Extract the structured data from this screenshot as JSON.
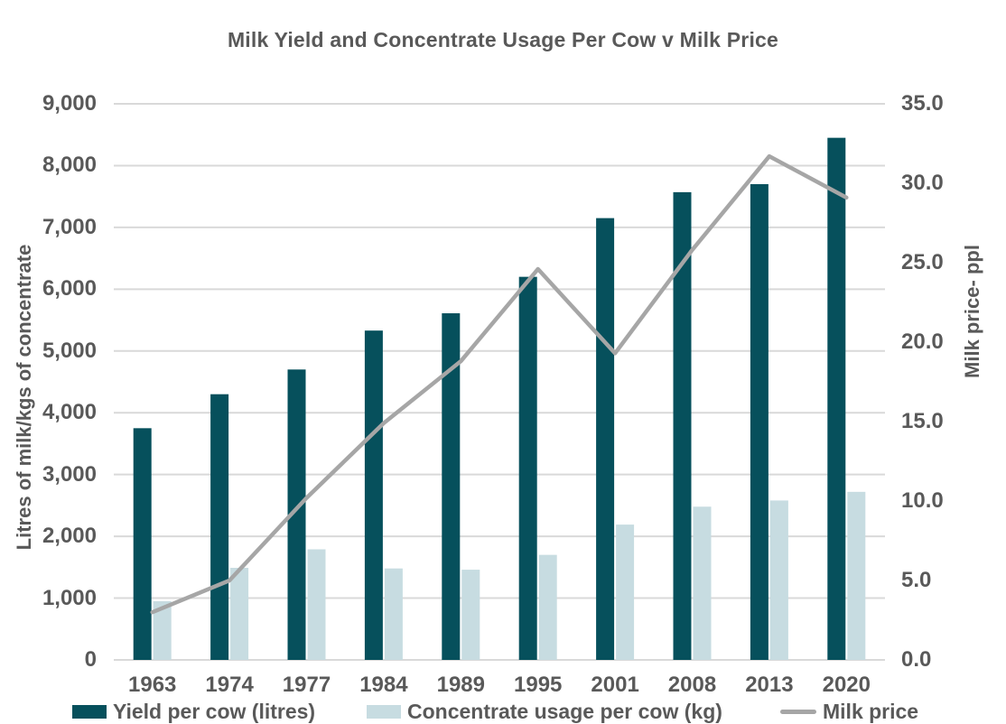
{
  "chart_data": {
    "type": "bar",
    "subtype": "clustered-bar-with-line-combo",
    "title": "Milk Yield and Concentrate Usage Per Cow v Milk Price",
    "categories": [
      "1963",
      "1974",
      "1977",
      "1984",
      "1989",
      "1995",
      "2001",
      "2008",
      "2013",
      "2020"
    ],
    "series": [
      {
        "name": "Yield per cow (litres)",
        "type": "bar",
        "axis": "left",
        "color": "#06505c",
        "values": [
          3750,
          4300,
          4700,
          5330,
          5610,
          6200,
          7150,
          7570,
          7700,
          8450
        ]
      },
      {
        "name": "Concentrate usage per cow (kg)",
        "type": "bar",
        "axis": "left",
        "color": "#c7dce1",
        "values": [
          950,
          1490,
          1790,
          1480,
          1460,
          1700,
          2190,
          2480,
          2580,
          2720
        ]
      },
      {
        "name": "Milk price",
        "type": "line",
        "axis": "right",
        "color": "#a6a6a6",
        "values": [
          3.0,
          5.0,
          10.2,
          14.9,
          18.8,
          24.6,
          19.3,
          25.8,
          31.7,
          29.1
        ]
      }
    ],
    "left_axis": {
      "title": "Litres of milk/kgs of concentrate",
      "min": 0,
      "max": 9000,
      "step": 1000,
      "tick_labels": [
        "0",
        "1,000",
        "2,000",
        "3,000",
        "4,000",
        "5,000",
        "6,000",
        "7,000",
        "8,000",
        "9,000"
      ]
    },
    "right_axis": {
      "title": "Milk price- ppl",
      "min": 0,
      "max": 35,
      "step": 5,
      "tick_labels": [
        "0.0",
        "5.0",
        "10.0",
        "15.0",
        "20.0",
        "25.0",
        "30.0",
        "35.0"
      ]
    },
    "x_axis": {
      "tick_labels": [
        "1963",
        "1974",
        "1977",
        "1984",
        "1989",
        "1995",
        "2001",
        "2008",
        "2013",
        "2020"
      ]
    },
    "grid": "horizontal",
    "gridline_color": "#d9d9d9",
    "text_color": "#595959",
    "legend_position": "bottom"
  }
}
